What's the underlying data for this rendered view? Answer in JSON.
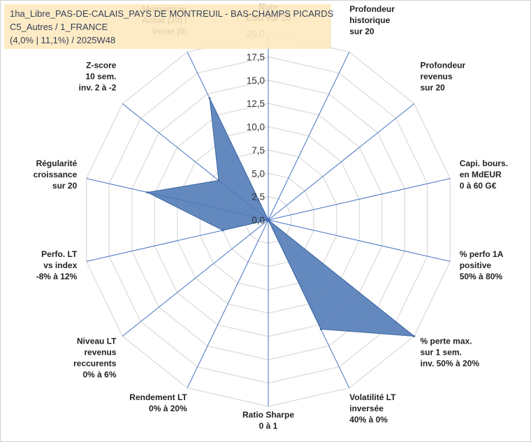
{
  "chart_data": {
    "type": "radar",
    "title_lines": [
      "1ha_Libre_PAS-DE-CALAIS_PAYS DE MONTREUIL - BAS-CHAMPS PICARDS",
      "C5_Autres / 1_FRANCE",
      "(4,0% | 11,1%) / 2025W48"
    ],
    "rlim": [
      0,
      20
    ],
    "ticks": [
      "0,0",
      "2,5",
      "5,0",
      "7,5",
      "10,0",
      "12,5",
      "15,0",
      "17,5",
      "20,0"
    ],
    "tick_values": [
      0,
      2.5,
      5,
      7.5,
      10,
      12.5,
      15,
      17.5,
      20
    ],
    "axes": [
      {
        "label": [
          "Note",
          "ESG sur 20"
        ],
        "value": 0
      },
      {
        "label": [
          "Profondeur",
          "historique",
          "sur 20"
        ],
        "value": 0
      },
      {
        "label": [
          "Profondeur",
          "revenus",
          "sur 20"
        ],
        "value": 0
      },
      {
        "label": [
          "Capi. bours.",
          "en MdEUR",
          "0 à 60 G€"
        ],
        "value": 0
      },
      {
        "label": [
          "% perfo 1A",
          "positive",
          "50% à 80%"
        ],
        "value": 0
      },
      {
        "label": [
          "% perte max.",
          "sur 1 sem.",
          "inv. 50% à 20%"
        ],
        "value": 20
      },
      {
        "label": [
          "Volatilité LT",
          "inversée",
          "40% à 0%"
        ],
        "value": 13
      },
      {
        "label": [
          "Ratio Sharpe",
          "0 à 1"
        ],
        "value": 0
      },
      {
        "label": [
          "Rendement LT",
          "0% à 20%"
        ],
        "value": 0
      },
      {
        "label": [
          "Niveau LT",
          "revenus",
          "reccurents",
          "0% à 6%"
        ],
        "value": 0
      },
      {
        "label": [
          "Perfo. LT",
          "vs index",
          "-8% à 12%"
        ],
        "value": 5
      },
      {
        "label": [
          "Régularité",
          "croissance",
          "sur 20"
        ],
        "value": 13.3
      },
      {
        "label": [
          "Z-score",
          "10 sem.",
          "inv. 2 à -2"
        ],
        "value": 6.8
      },
      {
        "label": [
          "Momentum",
          "Achat (20) /",
          "Vente (0)"
        ],
        "value": 14.5
      }
    ],
    "colors": {
      "fill": "#4f79b5",
      "stroke": "#3f67a3",
      "grid": "#d9d9d9",
      "spoke": "#4472c4"
    }
  }
}
